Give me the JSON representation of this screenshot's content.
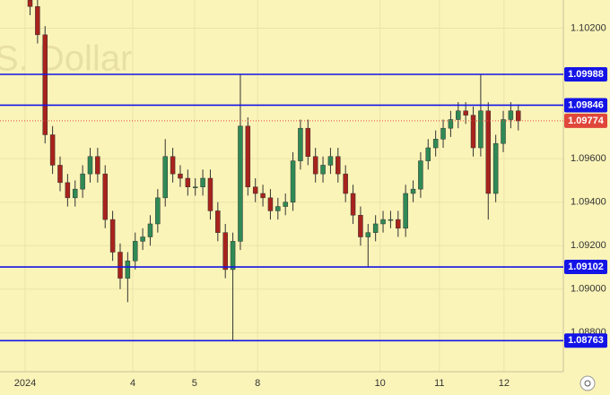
{
  "chart_data": {
    "type": "candlestick",
    "watermark": "S. Dollar",
    "x": [
      0,
      1,
      2,
      3,
      4,
      5,
      6,
      7,
      8,
      9,
      10,
      11,
      12,
      13,
      14,
      15,
      16,
      17,
      18,
      19,
      20,
      21,
      22,
      23,
      24,
      25,
      26,
      27,
      28,
      29,
      30,
      31,
      32,
      33,
      34,
      35,
      36,
      37,
      38,
      39,
      40,
      41,
      42,
      43,
      44,
      45,
      46,
      47,
      48,
      49,
      50,
      51,
      52,
      53,
      54,
      55,
      56,
      57,
      58,
      59,
      60,
      61,
      62,
      63,
      64,
      65
    ],
    "open": [
      1.1033,
      1.103,
      1.1017,
      1.0971,
      1.0957,
      1.0949,
      1.0942,
      1.0946,
      1.0953,
      1.0961,
      1.0953,
      1.0932,
      1.0917,
      1.0905,
      1.0913,
      1.0922,
      1.0924,
      1.093,
      1.0942,
      1.0961,
      1.0953,
      1.0951,
      1.0947,
      1.0947,
      1.0951,
      1.0936,
      1.0926,
      1.0909,
      1.0922,
      1.0975,
      1.0947,
      1.0944,
      1.0942,
      1.0936,
      1.0938,
      1.094,
      1.0959,
      1.0974,
      1.0961,
      1.0953,
      1.0957,
      1.0961,
      1.0953,
      1.0944,
      1.0934,
      1.0924,
      1.0926,
      1.093,
      1.0932,
      1.0932,
      1.0928,
      1.0944,
      1.0946,
      1.0959,
      1.0965,
      1.0969,
      1.0974,
      1.0978,
      1.0982,
      1.098,
      1.0965,
      1.0982,
      1.0944,
      1.0967,
      1.0978,
      1.0982
    ],
    "high": [
      1.1037,
      1.1034,
      1.1021,
      1.0975,
      1.0961,
      1.0953,
      1.095,
      1.0957,
      1.0965,
      1.0965,
      1.0957,
      1.0936,
      1.0921,
      1.0917,
      1.0926,
      1.0928,
      1.0934,
      1.0946,
      1.0969,
      1.0965,
      1.0957,
      1.0955,
      1.0951,
      1.0955,
      1.0955,
      1.094,
      1.093,
      1.0926,
      1.09988,
      1.0979,
      1.0951,
      1.0948,
      1.0946,
      1.0942,
      1.0944,
      1.0963,
      1.0978,
      1.0978,
      1.0965,
      1.0961,
      1.0965,
      1.0965,
      1.0957,
      1.0948,
      1.0938,
      1.093,
      1.0934,
      1.0936,
      1.0936,
      1.0936,
      1.0948,
      1.095,
      1.0963,
      1.0969,
      1.0973,
      1.0978,
      1.0982,
      1.0986,
      1.0986,
      1.0984,
      1.09988,
      1.0986,
      1.0971,
      1.0982,
      1.0986,
      1.0985
    ],
    "low": [
      1.1026,
      1.1013,
      1.0967,
      1.0953,
      1.0945,
      1.0938,
      1.0938,
      1.0942,
      1.0949,
      1.0949,
      1.0928,
      1.0913,
      1.09,
      1.0894,
      1.0909,
      1.0918,
      1.092,
      1.0926,
      1.0938,
      1.0949,
      1.0947,
      1.0943,
      1.0943,
      1.0943,
      1.0932,
      1.0922,
      1.0905,
      1.08763,
      1.0918,
      1.0943,
      1.094,
      1.0938,
      1.0932,
      1.0932,
      1.0934,
      1.0936,
      1.0955,
      1.0957,
      1.0949,
      1.0949,
      1.0953,
      1.0949,
      1.094,
      1.093,
      1.092,
      1.091,
      1.0922,
      1.0926,
      1.0928,
      1.0924,
      1.0924,
      1.094,
      1.0942,
      1.0955,
      1.0961,
      1.0965,
      1.097,
      1.0974,
      1.0976,
      1.0961,
      1.0961,
      1.0932,
      1.094,
      1.0963,
      1.0974,
      1.0973
    ],
    "close": [
      1.103,
      1.1017,
      1.0971,
      1.0957,
      1.0949,
      1.0942,
      1.0946,
      1.0953,
      1.0961,
      1.0953,
      1.0932,
      1.0917,
      1.0905,
      1.0913,
      1.0922,
      1.0924,
      1.093,
      1.0942,
      1.0961,
      1.0953,
      1.0951,
      1.0947,
      1.0947,
      1.0951,
      1.0936,
      1.0926,
      1.0909,
      1.0922,
      1.0975,
      1.0947,
      1.0944,
      1.0942,
      1.0936,
      1.0938,
      1.094,
      1.0959,
      1.0974,
      1.0961,
      1.0953,
      1.0957,
      1.0961,
      1.0953,
      1.0944,
      1.0934,
      1.0924,
      1.0926,
      1.093,
      1.0932,
      1.0932,
      1.0928,
      1.0944,
      1.0946,
      1.0959,
      1.0965,
      1.0969,
      1.0974,
      1.0978,
      1.0982,
      1.098,
      1.0965,
      1.0982,
      1.0944,
      1.0967,
      1.0978,
      1.0982,
      1.09774
    ],
    "xlim": [
      -4,
      71
    ],
    "xticks": [
      {
        "value": -0.66,
        "label": "2024"
      },
      {
        "value": 13.68,
        "label": "4"
      },
      {
        "value": 21.9,
        "label": "5"
      },
      {
        "value": 30.3,
        "label": "8"
      },
      {
        "value": 46.6,
        "label": "10"
      },
      {
        "value": 54.5,
        "label": "11"
      },
      {
        "value": 63.1,
        "label": "12"
      }
    ],
    "ylim": [
      1.0862,
      1.1033
    ],
    "yticks": [
      {
        "value": 1.102,
        "label": "1.10200"
      },
      {
        "value": 1.096,
        "label": "1.09600"
      },
      {
        "value": 1.094,
        "label": "1.09400"
      },
      {
        "value": 1.092,
        "label": "1.09200"
      },
      {
        "value": 1.09,
        "label": "1.09000"
      },
      {
        "value": 1.088,
        "label": "1.08800"
      }
    ],
    "levels": [
      {
        "value": 1.09988,
        "label": "1.09988"
      },
      {
        "value": 1.09846,
        "label": "1.09846"
      },
      {
        "value": 1.09102,
        "label": "1.09102"
      },
      {
        "value": 1.08763,
        "label": "1.08763"
      }
    ],
    "current": {
      "value": 1.09774,
      "label": "1.09774"
    },
    "up_color": "#2f8a55",
    "down_color": "#a8231c",
    "level_color": "#1414e6",
    "current_color": "#e0463a",
    "grid": true
  }
}
